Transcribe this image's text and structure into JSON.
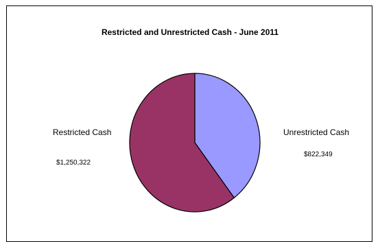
{
  "chart_data": {
    "type": "pie",
    "title": "Restricted and Unrestricted Cash - June 2011",
    "slices": [
      {
        "label": "Unrestricted Cash",
        "value": 822349,
        "value_label": "$822,349",
        "color": "#9999ff"
      },
      {
        "label": "Restricted Cash",
        "value": 1250322,
        "value_label": "$1,250,322",
        "color": "#993366"
      }
    ]
  }
}
